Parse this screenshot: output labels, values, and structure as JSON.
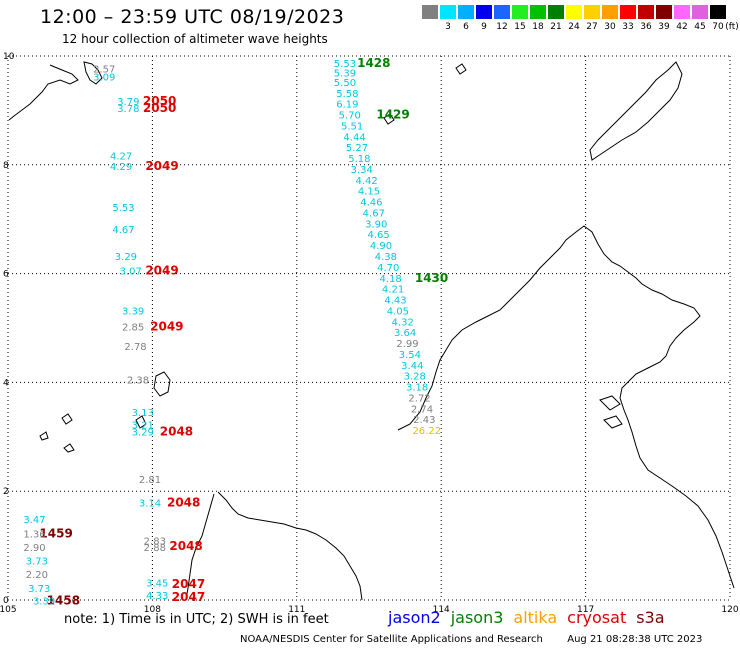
{
  "header": {
    "title": "12:00 – 23:59 UTC 08/19/2023",
    "subtitle": "12 hour collection of altimeter wave heights"
  },
  "colorbar": {
    "unit": "(ft)",
    "bins": [
      {
        "color": "#808080",
        "label": ""
      },
      {
        "color": "#00e5ff",
        "label": "3"
      },
      {
        "color": "#00b0ff",
        "label": "6"
      },
      {
        "color": "#0000ee",
        "label": "9"
      },
      {
        "color": "#1a66ff",
        "label": "12"
      },
      {
        "color": "#22ee22",
        "label": "15"
      },
      {
        "color": "#00c000",
        "label": "18"
      },
      {
        "color": "#008000",
        "label": "21"
      },
      {
        "color": "#ffff00",
        "label": "24"
      },
      {
        "color": "#ffd000",
        "label": "27"
      },
      {
        "color": "#ffa000",
        "label": "30"
      },
      {
        "color": "#ff0000",
        "label": "33"
      },
      {
        "color": "#c00000",
        "label": "36"
      },
      {
        "color": "#800000",
        "label": "39"
      },
      {
        "color": "#ff66ff",
        "label": "42"
      },
      {
        "color": "#e060e0",
        "label": "45"
      },
      {
        "color": "#000000",
        "label": "70"
      }
    ]
  },
  "map": {
    "lon_range": [
      105,
      120
    ],
    "lat_range": [
      0,
      10
    ],
    "lon_ticks": [
      "105",
      "108",
      "111",
      "114",
      "117",
      "120"
    ],
    "lat_ticks": [
      "0",
      "2",
      "4",
      "6",
      "8",
      "10"
    ],
    "observations": [
      {
        "lon": 107.0,
        "lat": 9.7,
        "value": "2.57",
        "color": "#808080"
      },
      {
        "lon": 107.0,
        "lat": 9.55,
        "value": "3.09",
        "color": "#00c8e0"
      },
      {
        "lon": 112.0,
        "lat": 9.8,
        "value": "5.53",
        "color": "#00c8e0"
      },
      {
        "lon": 112.0,
        "lat": 9.62,
        "value": "5.39",
        "color": "#00c8e0"
      },
      {
        "lon": 112.0,
        "lat": 9.45,
        "value": "5.50",
        "color": "#00c8e0"
      },
      {
        "lon": 112.05,
        "lat": 9.25,
        "value": "5.58",
        "color": "#00c8e0"
      },
      {
        "lon": 112.05,
        "lat": 9.05,
        "value": "6.19",
        "color": "#00c8e0"
      },
      {
        "lon": 112.1,
        "lat": 8.85,
        "value": "5.70",
        "color": "#00c8e0"
      },
      {
        "lon": 112.15,
        "lat": 8.65,
        "value": "5.51",
        "color": "#00c8e0"
      },
      {
        "lon": 112.2,
        "lat": 8.45,
        "value": "4.44",
        "color": "#00c8e0"
      },
      {
        "lon": 112.25,
        "lat": 8.25,
        "value": "5.27",
        "color": "#00c8e0"
      },
      {
        "lon": 112.3,
        "lat": 8.05,
        "value": "5.18",
        "color": "#00c8e0"
      },
      {
        "lon": 112.35,
        "lat": 7.85,
        "value": "3.34",
        "color": "#00c8e0"
      },
      {
        "lon": 112.45,
        "lat": 7.65,
        "value": "4.42",
        "color": "#00c8e0"
      },
      {
        "lon": 112.5,
        "lat": 7.45,
        "value": "4.15",
        "color": "#00c8e0"
      },
      {
        "lon": 112.55,
        "lat": 7.25,
        "value": "4.46",
        "color": "#00c8e0"
      },
      {
        "lon": 112.6,
        "lat": 7.05,
        "value": "4.67",
        "color": "#00c8e0"
      },
      {
        "lon": 112.65,
        "lat": 6.85,
        "value": "3.90",
        "color": "#00c8e0"
      },
      {
        "lon": 112.7,
        "lat": 6.65,
        "value": "4.65",
        "color": "#00c8e0"
      },
      {
        "lon": 112.75,
        "lat": 6.45,
        "value": "4.90",
        "color": "#00c8e0"
      },
      {
        "lon": 112.85,
        "lat": 6.25,
        "value": "4.38",
        "color": "#00c8e0"
      },
      {
        "lon": 112.9,
        "lat": 6.05,
        "value": "4.70",
        "color": "#00c8e0"
      },
      {
        "lon": 112.95,
        "lat": 5.85,
        "value": "4.18",
        "color": "#00c8e0"
      },
      {
        "lon": 113.0,
        "lat": 5.65,
        "value": "4.21",
        "color": "#00c8e0"
      },
      {
        "lon": 113.05,
        "lat": 5.45,
        "value": "4.43",
        "color": "#00c8e0"
      },
      {
        "lon": 113.1,
        "lat": 5.25,
        "value": "4.05",
        "color": "#00c8e0"
      },
      {
        "lon": 113.2,
        "lat": 5.05,
        "value": "4.32",
        "color": "#00c8e0"
      },
      {
        "lon": 113.25,
        "lat": 4.85,
        "value": "3.64",
        "color": "#00c8e0"
      },
      {
        "lon": 113.3,
        "lat": 4.65,
        "value": "2.99",
        "color": "#808080"
      },
      {
        "lon": 113.35,
        "lat": 4.45,
        "value": "3.54",
        "color": "#00c8e0"
      },
      {
        "lon": 113.4,
        "lat": 4.25,
        "value": "3.44",
        "color": "#00c8e0"
      },
      {
        "lon": 113.45,
        "lat": 4.05,
        "value": "3.28",
        "color": "#00c8e0"
      },
      {
        "lon": 113.5,
        "lat": 3.85,
        "value": "3.18",
        "color": "#00c8e0"
      },
      {
        "lon": 113.55,
        "lat": 3.65,
        "value": "2.72",
        "color": "#808080"
      },
      {
        "lon": 113.6,
        "lat": 3.45,
        "value": "2.74",
        "color": "#808080"
      },
      {
        "lon": 113.65,
        "lat": 3.25,
        "value": "2.43",
        "color": "#808080"
      },
      {
        "lon": 113.7,
        "lat": 3.05,
        "value": "26.22",
        "color": "#e0c000"
      },
      {
        "lon": 107.5,
        "lat": 9.1,
        "value": "3.79",
        "color": "#00c8e0"
      },
      {
        "lon": 107.5,
        "lat": 8.97,
        "value": "3.78",
        "color": "#00c8e0"
      },
      {
        "lon": 107.35,
        "lat": 8.1,
        "value": "4.27",
        "color": "#00c8e0"
      },
      {
        "lon": 107.35,
        "lat": 7.9,
        "value": "4.29",
        "color": "#00c8e0"
      },
      {
        "lon": 107.4,
        "lat": 7.15,
        "value": "5.53",
        "color": "#00c8e0"
      },
      {
        "lon": 107.4,
        "lat": 6.75,
        "value": "4.67",
        "color": "#00c8e0"
      },
      {
        "lon": 107.45,
        "lat": 6.25,
        "value": "3.29",
        "color": "#00c8e0"
      },
      {
        "lon": 107.55,
        "lat": 5.98,
        "value": "3.07",
        "color": "#00c8e0"
      },
      {
        "lon": 107.6,
        "lat": 5.25,
        "value": "3.39",
        "color": "#00c8e0"
      },
      {
        "lon": 107.6,
        "lat": 4.95,
        "value": "2.85",
        "color": "#808080"
      },
      {
        "lon": 107.65,
        "lat": 4.6,
        "value": "2.78",
        "color": "#808080"
      },
      {
        "lon": 107.7,
        "lat": 3.98,
        "value": "2.38",
        "color": "#808080"
      },
      {
        "lon": 107.8,
        "lat": 3.38,
        "value": "3.13",
        "color": "#00c8e0"
      },
      {
        "lon": 107.8,
        "lat": 3.15,
        "value": "3.21",
        "color": "#00c8e0"
      },
      {
        "lon": 107.8,
        "lat": 3.02,
        "value": "3.29",
        "color": "#00c8e0"
      },
      {
        "lon": 107.95,
        "lat": 2.15,
        "value": "2.81",
        "color": "#808080"
      },
      {
        "lon": 107.95,
        "lat": 1.72,
        "value": "3.14",
        "color": "#00c8e0"
      },
      {
        "lon": 108.05,
        "lat": 1.02,
        "value": "2.83",
        "color": "#808080"
      },
      {
        "lon": 108.05,
        "lat": 0.9,
        "value": "2.88",
        "color": "#808080"
      },
      {
        "lon": 108.1,
        "lat": 0.25,
        "value": "3.45",
        "color": "#00c8e0"
      },
      {
        "lon": 108.1,
        "lat": 0.02,
        "value": "4.33",
        "color": "#00c8e0"
      },
      {
        "lon": 105.55,
        "lat": 1.42,
        "value": "3.47",
        "color": "#00c8e0"
      },
      {
        "lon": 105.55,
        "lat": 1.15,
        "value": "1.36",
        "color": "#808080"
      },
      {
        "lon": 105.55,
        "lat": 0.9,
        "value": "2.90",
        "color": "#808080"
      },
      {
        "lon": 105.6,
        "lat": 0.65,
        "value": "3.73",
        "color": "#00c8e0"
      },
      {
        "lon": 105.6,
        "lat": 0.4,
        "value": "2.20",
        "color": "#808080"
      },
      {
        "lon": 105.65,
        "lat": 0.15,
        "value": "3.73",
        "color": "#00c8e0"
      },
      {
        "lon": 105.75,
        "lat": -0.08,
        "value": "3.39",
        "color": "#00c8e0"
      }
    ],
    "track_times": [
      {
        "lon": 112.6,
        "lat": 9.8,
        "label": "1428",
        "color": "#008000"
      },
      {
        "lon": 113.0,
        "lat": 8.85,
        "label": "1429",
        "color": "#008000"
      },
      {
        "lon": 113.8,
        "lat": 5.85,
        "label": "1430",
        "color": "#008000"
      },
      {
        "lon": 108.15,
        "lat": 9.1,
        "label": "2050",
        "color": "#e00000"
      },
      {
        "lon": 108.15,
        "lat": 8.97,
        "label": "2050",
        "color": "#e00000"
      },
      {
        "lon": 108.2,
        "lat": 7.9,
        "label": "2049",
        "color": "#e00000"
      },
      {
        "lon": 108.2,
        "lat": 5.98,
        "label": "2049",
        "color": "#e00000"
      },
      {
        "lon": 108.3,
        "lat": 4.95,
        "label": "2049",
        "color": "#e00000"
      },
      {
        "lon": 108.5,
        "lat": 3.02,
        "label": "2048",
        "color": "#e00000"
      },
      {
        "lon": 108.65,
        "lat": 1.72,
        "label": "2048",
        "color": "#e00000"
      },
      {
        "lon": 108.7,
        "lat": 0.92,
        "label": "2048",
        "color": "#e00000"
      },
      {
        "lon": 108.75,
        "lat": 0.22,
        "label": "2047",
        "color": "#e00000"
      },
      {
        "lon": 108.75,
        "lat": -0.02,
        "label": "2047",
        "color": "#e00000"
      },
      {
        "lon": 106.0,
        "lat": 1.15,
        "label": "1459",
        "color": "#800000"
      },
      {
        "lon": 106.15,
        "lat": -0.08,
        "label": "1458",
        "color": "#800000"
      }
    ]
  },
  "notes": {
    "note": "note: 1) Time is in UTC; 2) SWH is in feet"
  },
  "legend": [
    {
      "name": "jason2",
      "color": "#0000ee"
    },
    {
      "name": "jason3",
      "color": "#008000"
    },
    {
      "name": "altika",
      "color": "#ffa000"
    },
    {
      "name": "cryosat",
      "color": "#e00000"
    },
    {
      "name": "s3a",
      "color": "#800000"
    }
  ],
  "footer": {
    "credit": "NOAA/NESDIS Center for Satellite Applications and Research",
    "timestamp": "Aug 21 08:28:38 UTC 2023"
  }
}
